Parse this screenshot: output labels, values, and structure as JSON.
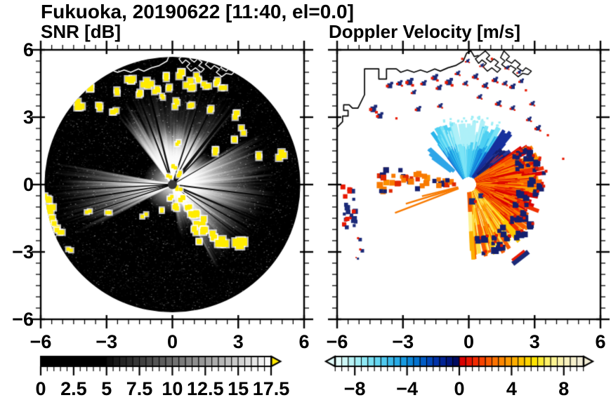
{
  "title": "Fukuoka, 20190622 [11:40, el=0.0]",
  "panels": {
    "snr": {
      "subtitle": "SNR [dB]"
    },
    "velocity": {
      "subtitle": "Doppler Velocity [m/s]"
    }
  },
  "axes": {
    "range_km": [
      -6,
      6
    ],
    "x_tick_values": [
      -6,
      -3,
      0,
      3,
      6
    ],
    "x_tick_labels": [
      "−6",
      "−3",
      "0",
      "3",
      "6"
    ],
    "y_tick_values": [
      6,
      3,
      0,
      -3,
      -6
    ],
    "y_tick_labels": [
      "6",
      "3",
      "0",
      "−3",
      "−6"
    ],
    "minor_step": 0.5
  },
  "colorbars": {
    "snr": {
      "min": 0,
      "max": 17.5,
      "cell_step": 0.5,
      "minor_step": 0.5,
      "black_below": 5,
      "tick_values": [
        0,
        2.5,
        5,
        7.5,
        10,
        12.5,
        15,
        17.5
      ],
      "tick_labels": [
        "0",
        "2.5",
        "5",
        "7.5",
        "10",
        "12.5",
        "15",
        "17.5"
      ],
      "over_arrow_color": "#ffe800"
    },
    "velocity": {
      "min": -9.5,
      "max": 9.5,
      "cell_step": 0.5,
      "minor_step": 0.5,
      "tick_values": [
        -8,
        -4,
        0,
        4,
        8
      ],
      "tick_labels": [
        "−8",
        "−4",
        "0",
        "4",
        "8"
      ],
      "cells": [
        "#e2fbfa",
        "#cdf7f7",
        "#b8f3f6",
        "#a3eef5",
        "#8ee8f4",
        "#79e0f3",
        "#64d5f1",
        "#4fc8ee",
        "#3bbaeb",
        "#28abe7",
        "#189ae0",
        "#0c86d8",
        "#0472cf",
        "#015cc5",
        "#0146b8",
        "#0132a8",
        "#012394",
        "#01167c",
        "#010b60",
        "#d90000",
        "#e81400",
        "#f22a00",
        "#f74200",
        "#fa5a00",
        "#fc7200",
        "#fd8600",
        "#fd9a00",
        "#feae00",
        "#fec200",
        "#fed400",
        "#fee300",
        "#feec32",
        "#fef26a",
        "#fdf492",
        "#fbf3ac",
        "#f9f2c0",
        "#f6f0cc",
        "#f3eed6"
      ]
    }
  },
  "chart_data": {
    "type": "heatmap",
    "subtype": "radar_ppi_pair",
    "site": "Fukuoka",
    "date": "20190622",
    "time": "11:40",
    "elevation_deg": 0.0,
    "x_range_km": [
      -6,
      6
    ],
    "y_range_km": [
      -6,
      6
    ],
    "scan_radius_km": 5.8,
    "coastline_km": [
      [
        -6,
        2.55
      ],
      [
        -5.75,
        2.8
      ],
      [
        -5.75,
        3.05
      ],
      [
        -5.5,
        3.05
      ],
      [
        -5.5,
        3.3
      ],
      [
        -5.7,
        3.3
      ],
      [
        -5.7,
        3.55
      ],
      [
        -5.45,
        3.55
      ],
      [
        -5.3,
        3.4
      ],
      [
        -5.05,
        3.4
      ],
      [
        -4.75,
        4.0
      ],
      [
        -4.75,
        5.15
      ],
      [
        -4.1,
        5.15
      ],
      [
        -4.1,
        4.7
      ],
      [
        -3.75,
        4.7
      ],
      [
        -3.75,
        5.15
      ],
      [
        -3.3,
        5.15
      ],
      [
        -3.1,
        5.0
      ],
      [
        -2.8,
        5.1
      ],
      [
        -2.5,
        5.0
      ],
      [
        -2.2,
        5.1
      ],
      [
        -1.9,
        5.0
      ],
      [
        -1.55,
        5.15
      ],
      [
        -1.3,
        5.05
      ],
      [
        -0.95,
        5.2
      ],
      [
        -0.6,
        5.3
      ],
      [
        -0.25,
        5.5
      ],
      [
        -0.1,
        5.85
      ],
      [
        0.1,
        5.95
      ],
      [
        0.25,
        5.7
      ],
      [
        0.45,
        5.75
      ]
    ],
    "harbor_km": [
      [
        [
          0.75,
          5.95
        ],
        [
          0.95,
          5.75
        ],
        [
          0.8,
          5.6
        ],
        [
          1.0,
          5.45
        ],
        [
          1.15,
          5.6
        ],
        [
          1.35,
          5.45
        ],
        [
          1.2,
          5.3
        ],
        [
          1.45,
          5.15
        ],
        [
          1.3,
          5.0
        ],
        [
          1.05,
          5.2
        ],
        [
          0.85,
          5.05
        ],
        [
          0.65,
          5.25
        ],
        [
          0.8,
          5.4
        ],
        [
          0.6,
          5.55
        ],
        [
          0.45,
          5.4
        ],
        [
          0.3,
          5.6
        ],
        [
          0.5,
          5.75
        ],
        [
          0.75,
          5.95
        ]
      ],
      [
        [
          1.6,
          5.95
        ],
        [
          1.85,
          5.7
        ],
        [
          1.7,
          5.55
        ],
        [
          1.95,
          5.4
        ],
        [
          2.1,
          5.55
        ],
        [
          2.35,
          5.35
        ],
        [
          2.2,
          5.2
        ],
        [
          2.45,
          5.05
        ],
        [
          2.6,
          5.2
        ],
        [
          2.85,
          5.05
        ],
        [
          2.7,
          4.9
        ],
        [
          2.45,
          4.95
        ],
        [
          2.25,
          4.8
        ],
        [
          2.0,
          5.0
        ],
        [
          2.15,
          5.15
        ],
        [
          1.9,
          5.3
        ],
        [
          1.75,
          5.15
        ],
        [
          1.5,
          5.35
        ],
        [
          1.65,
          5.5
        ],
        [
          1.45,
          5.65
        ],
        [
          1.6,
          5.95
        ]
      ]
    ],
    "snr_features": {
      "background": "black disk with faint gray speckle noise",
      "center_dot_color": "#3a3a3a",
      "fans": [
        [
          -38,
          -27,
          4.2,
          0.75
        ],
        [
          -27,
          42,
          2.9,
          0.95
        ],
        [
          -25,
          40,
          4.9,
          0.22
        ],
        [
          42,
          58,
          2.2,
          0.45
        ],
        [
          58,
          108,
          4.6,
          0.62
        ],
        [
          108,
          152,
          4.2,
          0.5
        ],
        [
          152,
          172,
          2.4,
          0.3
        ],
        [
          248,
          281,
          5.4,
          0.5
        ],
        [
          242,
          244.5,
          4.8,
          0.5
        ],
        [
          246,
          248,
          4.5,
          0.45
        ]
      ],
      "shadow_rays": [
        [
          -21,
          2
        ],
        [
          -14,
          2.5
        ],
        [
          18,
          2
        ],
        [
          27,
          1.5
        ],
        [
          38,
          4
        ],
        [
          44,
          1.5
        ],
        [
          60,
          1.2
        ],
        [
          97,
          2
        ],
        [
          113,
          2.5
        ],
        [
          120,
          1.5
        ],
        [
          128,
          1
        ],
        [
          251,
          1.5
        ],
        [
          256,
          1.2
        ],
        [
          261,
          2
        ],
        [
          267,
          1.5
        ],
        [
          273,
          1
        ]
      ],
      "clutter_color": "#ffec00",
      "clutter_patches": [
        [
          -4.15,
          3.55,
          5,
          4
        ],
        [
          -3.7,
          4.35,
          5,
          3
        ],
        [
          -3.3,
          3.45,
          4,
          3
        ],
        [
          -2.7,
          3.3,
          4,
          3
        ],
        [
          -2.45,
          4.2,
          4,
          2
        ],
        [
          -1.95,
          4.6,
          5,
          4
        ],
        [
          -1.55,
          4.05,
          4,
          3
        ],
        [
          -1.15,
          4.5,
          5,
          4
        ],
        [
          -0.75,
          4.2,
          4,
          3
        ],
        [
          -0.35,
          4.75,
          4,
          3
        ],
        [
          -0.1,
          4.3,
          4,
          2
        ],
        [
          0.3,
          4.85,
          5,
          3
        ],
        [
          0.75,
          4.45,
          5,
          4
        ],
        [
          1.2,
          4.75,
          4,
          3
        ],
        [
          1.55,
          4.35,
          4,
          3
        ],
        [
          1.95,
          4.6,
          4,
          3
        ],
        [
          2.35,
          4.4,
          4,
          2
        ],
        [
          0.2,
          3.6,
          4,
          3
        ],
        [
          0.9,
          3.5,
          4,
          2
        ],
        [
          1.7,
          3.3,
          4,
          2
        ],
        [
          -0.5,
          3.9,
          3,
          2
        ],
        [
          0.3,
          1.9,
          3,
          2
        ],
        [
          1.9,
          1.5,
          4,
          3
        ],
        [
          2.7,
          2.1,
          4,
          2
        ],
        [
          2.9,
          3.1,
          4,
          3
        ],
        [
          3.2,
          2.4,
          4,
          2
        ],
        [
          4.9,
          1.3,
          5,
          3
        ],
        [
          3.8,
          1.3,
          4,
          2
        ],
        [
          0.1,
          0.75,
          3,
          3
        ],
        [
          0.35,
          0.45,
          3,
          3
        ],
        [
          -0.15,
          0.35,
          3,
          2
        ],
        [
          0.3,
          -0.2,
          3,
          3
        ],
        [
          -0.1,
          -0.55,
          3,
          3
        ],
        [
          0.45,
          -0.7,
          4,
          3
        ],
        [
          0.15,
          -1.0,
          4,
          3
        ],
        [
          0.7,
          -0.95,
          4,
          3
        ],
        [
          0.95,
          -1.35,
          5,
          4
        ],
        [
          1.25,
          -1.7,
          5,
          4
        ],
        [
          1.0,
          -2.05,
          4,
          3
        ],
        [
          1.55,
          -2.0,
          5,
          4
        ],
        [
          1.9,
          -2.3,
          5,
          3
        ],
        [
          2.3,
          -2.6,
          6,
          4
        ],
        [
          3.05,
          -2.75,
          7,
          4
        ],
        [
          1.35,
          -2.45,
          4,
          2
        ],
        [
          -0.55,
          -1.15,
          3,
          2
        ],
        [
          -1.3,
          -1.35,
          3,
          2
        ],
        [
          -2.9,
          -1.3,
          3,
          2
        ],
        [
          -3.85,
          -1.15,
          3,
          2
        ],
        [
          -5.75,
          -0.7,
          5,
          3
        ],
        [
          -5.6,
          -1.1,
          5,
          4
        ],
        [
          -5.55,
          -1.55,
          5,
          3
        ],
        [
          -5.3,
          -1.85,
          4,
          3
        ],
        [
          -5.15,
          -2.15,
          4,
          3
        ],
        [
          -5.45,
          -2.45,
          4,
          2
        ],
        [
          -4.7,
          -2.9,
          3,
          2
        ]
      ]
    },
    "velocity_features": {
      "background": "white",
      "blue_fan": {
        "az": [
          -36,
          33
        ],
        "r_km": [
          0.35,
          2.9
        ],
        "gaps": [
          [
            -12,
            -9
          ],
          [
            5.5,
            8
          ],
          [
            19.5,
            22
          ]
        ],
        "palette": [
          "#aef0f8",
          "#7ce4f6",
          "#4fd0f2",
          "#27b4ea",
          "#1890e0",
          "#1060d0"
        ]
      },
      "pale_top_speckles": {
        "az": [
          -22,
          26
        ],
        "r_km": [
          2.9,
          3.25
        ],
        "n": 26,
        "color": "#9deef6"
      },
      "blue_edge_rays": {
        "az": [
          33,
          41
        ],
        "r_km": [
          0.4,
          3.0
        ],
        "color": "#16309d"
      },
      "stray_blue_rays": [
        [
          -48,
          0.9,
          2.7
        ],
        [
          -53,
          1.0,
          2.2
        ]
      ],
      "navy_wedge": {
        "az": [
          42,
          72
        ],
        "r_km": [
          0.6,
          3.2
        ],
        "colors": [
          "#141f6e",
          "#2a3a9a",
          "#e01800"
        ]
      },
      "red_fan": {
        "az": [
          55,
          178
        ],
        "r_km": [
          0.35,
          3.5
        ],
        "gaps": [
          [
            62,
            64.5
          ],
          [
            168,
            170.5
          ]
        ],
        "palette_red": [
          "#d90000",
          "#f03000",
          "#f85c00",
          "#fb7e00",
          "#fc9c00"
        ],
        "palette_yellow": [
          "#fcae00",
          "#fdc800",
          "#fee14a",
          "#fef08e",
          "#f85c00"
        ],
        "yellow_from_az": 135
      },
      "fringe": {
        "az": [
          58,
          172
        ],
        "navy": "#141f6e",
        "red": "#e01800",
        "n": 60
      },
      "west_band": {
        "az": [
          264,
          283
        ],
        "r_km": [
          0.5,
          4.1
        ],
        "colors": [
          "#f87a00",
          "#e02800",
          "#141f6e",
          "#fb9000"
        ],
        "n": 46
      },
      "west_rays": [
        [
          249,
          3.6
        ],
        [
          253,
          3.0
        ],
        [
          256,
          2.2
        ]
      ],
      "scatter_blobs": [
        [
          -4.35,
          3.35,
          8
        ],
        [
          -4.05,
          3.05,
          7
        ],
        [
          -3.6,
          4.4,
          7
        ],
        [
          -3.15,
          4.5,
          6
        ],
        [
          -2.7,
          4.55,
          8
        ],
        [
          -2.5,
          4.1,
          5
        ],
        [
          -2.05,
          4.5,
          6
        ],
        [
          -1.55,
          4.75,
          7
        ],
        [
          -1.35,
          4.3,
          6
        ],
        [
          -0.9,
          4.55,
          8
        ],
        [
          -0.5,
          4.95,
          5
        ],
        [
          -0.15,
          4.5,
          5
        ],
        [
          0.3,
          4.8,
          6
        ],
        [
          0.75,
          4.4,
          6
        ],
        [
          1.2,
          4.65,
          6
        ],
        [
          1.65,
          4.5,
          5
        ],
        [
          2.0,
          4.35,
          6
        ],
        [
          2.4,
          4.6,
          5
        ],
        [
          -2.3,
          3.35,
          6
        ],
        [
          -1.3,
          3.5,
          5
        ],
        [
          0.5,
          3.9,
          5
        ],
        [
          1.35,
          3.6,
          6
        ],
        [
          2.0,
          3.4,
          5
        ],
        [
          2.9,
          3.6,
          5
        ],
        [
          3.15,
          2.5,
          6
        ],
        [
          2.75,
          2.9,
          5
        ],
        [
          -0.05,
          5.5,
          4
        ],
        [
          0.6,
          5.3,
          4
        ],
        [
          1.75,
          5.2,
          4
        ],
        [
          2.3,
          5.0,
          4
        ]
      ],
      "tiny_red_dots": [
        [
          3.25,
          1.2
        ],
        [
          4.3,
          1.15
        ],
        [
          -0.3,
          5.6
        ],
        [
          1.05,
          5.6
        ],
        [
          2.6,
          4.2
        ],
        [
          -3.3,
          2.95
        ],
        [
          3.6,
          2.2
        ]
      ],
      "left_edge_cluster": {
        "x": -5.45,
        "y": -1.0,
        "sx": 0.3,
        "sy": 0.95,
        "n": 26
      },
      "lower_left_dots": [
        [
          -4.95,
          -2.45,
          5
        ],
        [
          -4.85,
          -2.95,
          5
        ],
        [
          -5.05,
          -3.3,
          3
        ]
      ],
      "sse_streak": {
        "x": 2.35,
        "y": -3.25,
        "angle_deg": -38,
        "len_km": 0.9
      },
      "center_blobs": [
        [
          0.15,
          -0.75,
          9
        ],
        [
          0.55,
          -0.5,
          7
        ]
      ],
      "center_hole_radius_px": 9.5
    }
  }
}
